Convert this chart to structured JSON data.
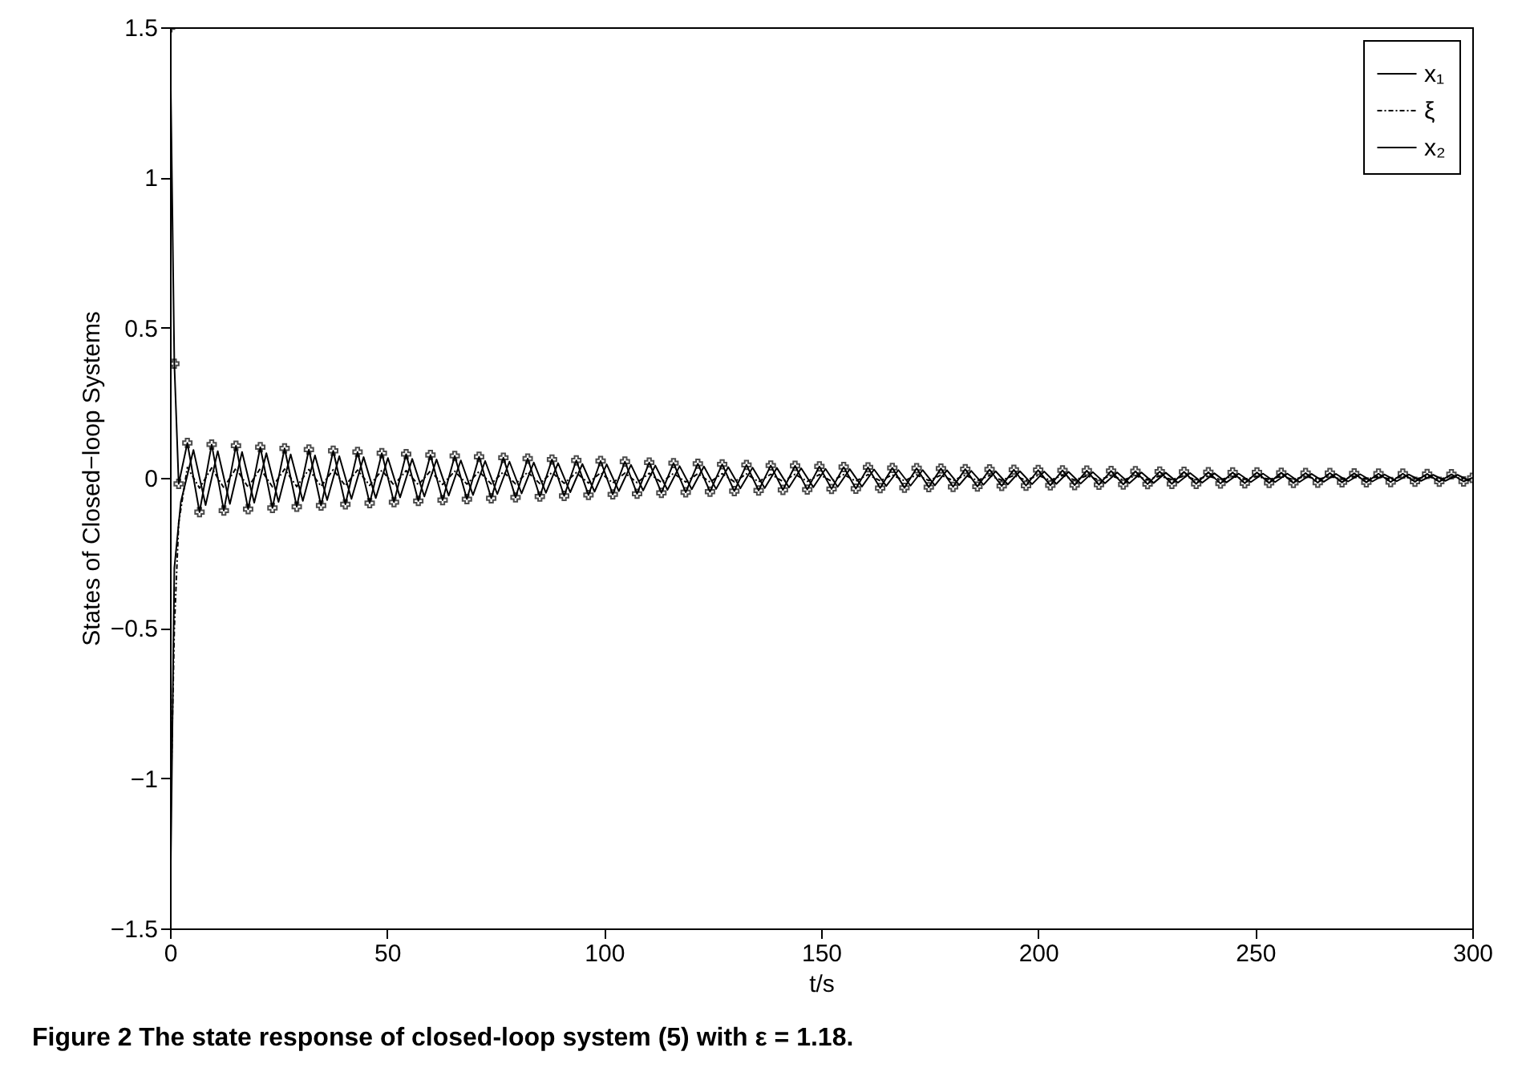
{
  "chart_data": {
    "type": "line",
    "title": "Figure 2  The state response of closed-loop system (5) with ε = 1.18.",
    "xlabel": "t/s",
    "ylabel": "States of Closed−loop Systems",
    "xlim": [
      0,
      300
    ],
    "xticks": [
      0,
      50,
      100,
      150,
      200,
      250,
      300
    ],
    "ylim": [
      -1.5,
      1.5
    ],
    "yticks": [
      -1.5,
      -1,
      -0.5,
      0,
      0.5,
      1,
      1.5
    ],
    "grid": false,
    "legend": "top right",
    "series": [
      {
        "name": "x₁",
        "color": "#000000",
        "line_style": "solid",
        "x": [
          0,
          1,
          2.5,
          5.4,
          8.2,
          11,
          13.8,
          16.6,
          19.4,
          22.2,
          25,
          27.8,
          30.6,
          33.4,
          36.2,
          39,
          41.8,
          44.6,
          47.4,
          50.2,
          53,
          55.8,
          58.6,
          61.4,
          64.2,
          67,
          69.8,
          72.6,
          75.4,
          78.2,
          81,
          83.8,
          86.6,
          89.4,
          92.2,
          95,
          97.8,
          100.6,
          103.4,
          106.2,
          109,
          111.8,
          114.6,
          117.4,
          120.2,
          123,
          125.8,
          128.6,
          131.4,
          134.2,
          137,
          139.8,
          142.6,
          145.4,
          148.2,
          151,
          153.8,
          156.6,
          159.4,
          162.2,
          165,
          167.8,
          170.6,
          173.4,
          176.2,
          179,
          181.8,
          184.6,
          187.4,
          190.2,
          193,
          195.8,
          198.6,
          201.4,
          204.2,
          207,
          209.8,
          212.6,
          215.4,
          218.2,
          221,
          223.8,
          226.6,
          229.4,
          232.2,
          235,
          237.8,
          240.6,
          243.4,
          246.2,
          249,
          251.8,
          254.6,
          257.4,
          260.2,
          263,
          265.8,
          268.6,
          271.4,
          274.2,
          277,
          279.8,
          282.6,
          285.4,
          288.2,
          291,
          293.8,
          296.6,
          299.4
        ],
        "values": [
          -1.5,
          -0.3,
          -0.08,
          0.093,
          -0.091,
          0.089,
          -0.087,
          0.086,
          -0.083,
          0.082,
          -0.08,
          0.078,
          -0.077,
          0.075,
          -0.074,
          0.072,
          -0.07,
          0.069,
          -0.067,
          0.066,
          -0.065,
          0.063,
          -0.062,
          0.061,
          -0.059,
          0.058,
          -0.057,
          0.056,
          -0.054,
          0.054,
          -0.052,
          0.051,
          -0.05,
          0.049,
          -0.048,
          0.046,
          -0.046,
          0.045,
          -0.044,
          0.043,
          -0.042,
          0.041,
          -0.04,
          0.039,
          -0.038,
          0.038,
          -0.037,
          0.036,
          -0.035,
          0.034,
          -0.034,
          0.033,
          -0.032,
          0.032,
          -0.031,
          0.03,
          -0.03,
          0.029,
          -0.029,
          0.028,
          -0.027,
          0.026,
          -0.026,
          0.026,
          -0.025,
          0.025,
          -0.024,
          0.023,
          -0.023,
          0.022,
          -0.022,
          0.022,
          -0.021,
          0.021,
          -0.02,
          0.02,
          -0.019,
          0.019,
          -0.018,
          0.018,
          -0.018,
          0.018,
          -0.017,
          0.017,
          -0.016,
          0.016,
          -0.016,
          0.015,
          -0.015,
          0.014,
          -0.014,
          0.014,
          -0.014,
          0.014,
          -0.014,
          0.013,
          -0.013,
          0.013,
          -0.012,
          0.012,
          -0.012,
          0.011,
          -0.011,
          0.011,
          -0.01,
          0.01,
          -0.01,
          0.01,
          -0.01
        ]
      },
      {
        "name": "ξ",
        "color": "#000000",
        "line_style": "dashed",
        "x": [
          0,
          1,
          2,
          4,
          6.8,
          9.6,
          12.4,
          15.2,
          18,
          20.8,
          23.6,
          26.4,
          29.2,
          32,
          34.8,
          37.6,
          40.4,
          43.2,
          46,
          48.8,
          51.6,
          54.4,
          57.2,
          60,
          62.8,
          65.6,
          68.4,
          71.2,
          74,
          76.8,
          79.6,
          82.4,
          85.2,
          88,
          90.8,
          93.6,
          96.4,
          99.2,
          102,
          104.8,
          107.6,
          110.4,
          113.2,
          116,
          118.8,
          121.6,
          124.4,
          127.2,
          130,
          132.8,
          135.6,
          138.4,
          141.2,
          144,
          146.8,
          149.6,
          152.4,
          155.2,
          158,
          160.8,
          163.6,
          166.4,
          169.2,
          172,
          174.8,
          177.6,
          180.4,
          183.2,
          186,
          188.8,
          191.6,
          194.4,
          197.2,
          200,
          202.8,
          205.6,
          208.4,
          211.2,
          214,
          216.8,
          219.6,
          222.4,
          225.2,
          228,
          230.8,
          233.6,
          236.4,
          239.2,
          242,
          244.8,
          247.6,
          250.4,
          253.2,
          256,
          258.8,
          261.6,
          264.4,
          267.2,
          270,
          272.8,
          275.6,
          278.4,
          281.2,
          284,
          286.8,
          289.6,
          292.4,
          295.2,
          298
        ],
        "values": [
          -1.2,
          -0.5,
          -0.15,
          0.035,
          -0.034,
          0.033,
          -0.033,
          0.032,
          -0.031,
          0.031,
          -0.03,
          0.029,
          -0.029,
          0.028,
          -0.028,
          0.027,
          -0.026,
          0.026,
          -0.025,
          0.025,
          -0.024,
          0.024,
          -0.023,
          0.023,
          -0.022,
          0.022,
          -0.021,
          0.021,
          -0.02,
          0.02,
          -0.02,
          0.019,
          -0.019,
          0.018,
          -0.018,
          0.017,
          -0.017,
          0.017,
          -0.017,
          0.016,
          -0.016,
          0.015,
          -0.015,
          0.015,
          -0.014,
          0.014,
          -0.014,
          0.014,
          -0.013,
          0.013,
          -0.013,
          0.012,
          -0.012,
          0.012,
          -0.012,
          0.011,
          -0.011,
          0.011,
          -0.011,
          0.011,
          -0.01,
          0.01,
          -0.01,
          0.01,
          -0.009,
          0.009,
          -0.009,
          0.009,
          -0.009,
          0.008,
          -0.008,
          0.008,
          -0.008,
          0.008,
          -0.008,
          0.008,
          -0.007,
          0.007,
          -0.007,
          0.007,
          -0.007,
          0.007,
          -0.006,
          0.006,
          -0.006,
          0.006,
          -0.006,
          0.006,
          -0.006,
          0.005,
          -0.005,
          0.005,
          -0.005,
          0.005,
          -0.005,
          0.005,
          -0.005,
          0.005,
          -0.005,
          0.005,
          -0.004,
          0.004,
          -0.004,
          0.004,
          -0.004,
          0.004,
          -0.004,
          0.004,
          -0.004
        ]
      },
      {
        "name": "x₂",
        "color": "#000000",
        "line_style": "solid",
        "marker": "cross",
        "x": [
          0,
          1,
          2,
          4,
          6.8,
          9.6,
          12.4,
          15.2,
          18,
          20.8,
          23.6,
          26.4,
          29.2,
          32,
          34.8,
          37.6,
          40.4,
          43.2,
          46,
          48.8,
          51.6,
          54.4,
          57.2,
          60,
          62.8,
          65.6,
          68.4,
          71.2,
          74,
          76.8,
          79.6,
          82.4,
          85.2,
          88,
          90.8,
          93.6,
          96.4,
          99.2,
          102,
          104.8,
          107.6,
          110.4,
          113.2,
          116,
          118.8,
          121.6,
          124.4,
          127.2,
          130,
          132.8,
          135.6,
          138.4,
          141.2,
          144,
          146.8,
          149.6,
          152.4,
          155.2,
          158,
          160.8,
          163.6,
          166.4,
          169.2,
          172,
          174.8,
          177.6,
          180.4,
          183.2,
          186,
          188.8,
          191.6,
          194.4,
          197.2,
          200,
          202.8,
          205.6,
          208.4,
          211.2,
          214,
          216.8,
          219.6,
          222.4,
          225.2,
          228,
          230.8,
          233.6,
          236.4,
          239.2,
          242,
          244.8,
          247.6,
          250.4,
          253.2,
          256,
          258.8,
          261.6,
          264.4,
          267.2,
          270,
          272.8,
          275.6,
          278.4,
          281.2,
          284,
          286.8,
          289.6,
          292.4,
          295.2,
          298,
          300
        ],
        "values": [
          1.5,
          0.38,
          -0.02,
          0.116,
          -0.114,
          0.111,
          -0.109,
          0.107,
          -0.104,
          0.102,
          -0.1,
          0.098,
          -0.096,
          0.094,
          -0.092,
          0.09,
          -0.088,
          0.086,
          -0.084,
          0.082,
          -0.081,
          0.079,
          -0.077,
          0.076,
          -0.074,
          0.073,
          -0.071,
          0.07,
          -0.068,
          0.067,
          -0.065,
          0.064,
          -0.062,
          0.061,
          -0.06,
          0.058,
          -0.057,
          0.056,
          -0.055,
          0.054,
          -0.053,
          0.051,
          -0.05,
          0.049,
          -0.048,
          0.047,
          -0.046,
          0.045,
          -0.044,
          0.043,
          -0.042,
          0.041,
          -0.04,
          0.04,
          -0.039,
          0.038,
          -0.037,
          0.036,
          -0.036,
          0.035,
          -0.034,
          0.033,
          -0.033,
          0.032,
          -0.031,
          0.031,
          -0.03,
          0.029,
          -0.029,
          0.028,
          -0.027,
          0.027,
          -0.026,
          0.026,
          -0.025,
          0.025,
          -0.024,
          0.024,
          -0.023,
          0.023,
          -0.022,
          0.022,
          -0.021,
          0.021,
          -0.02,
          0.02,
          -0.02,
          0.019,
          -0.019,
          0.018,
          -0.018,
          0.018,
          -0.017,
          0.017,
          -0.017,
          0.016,
          -0.016,
          0.016,
          -0.015,
          0.015,
          -0.015,
          0.014,
          -0.014,
          0.014,
          -0.013,
          0.013,
          -0.013,
          0.012,
          -0.012,
          0
        ]
      }
    ]
  }
}
